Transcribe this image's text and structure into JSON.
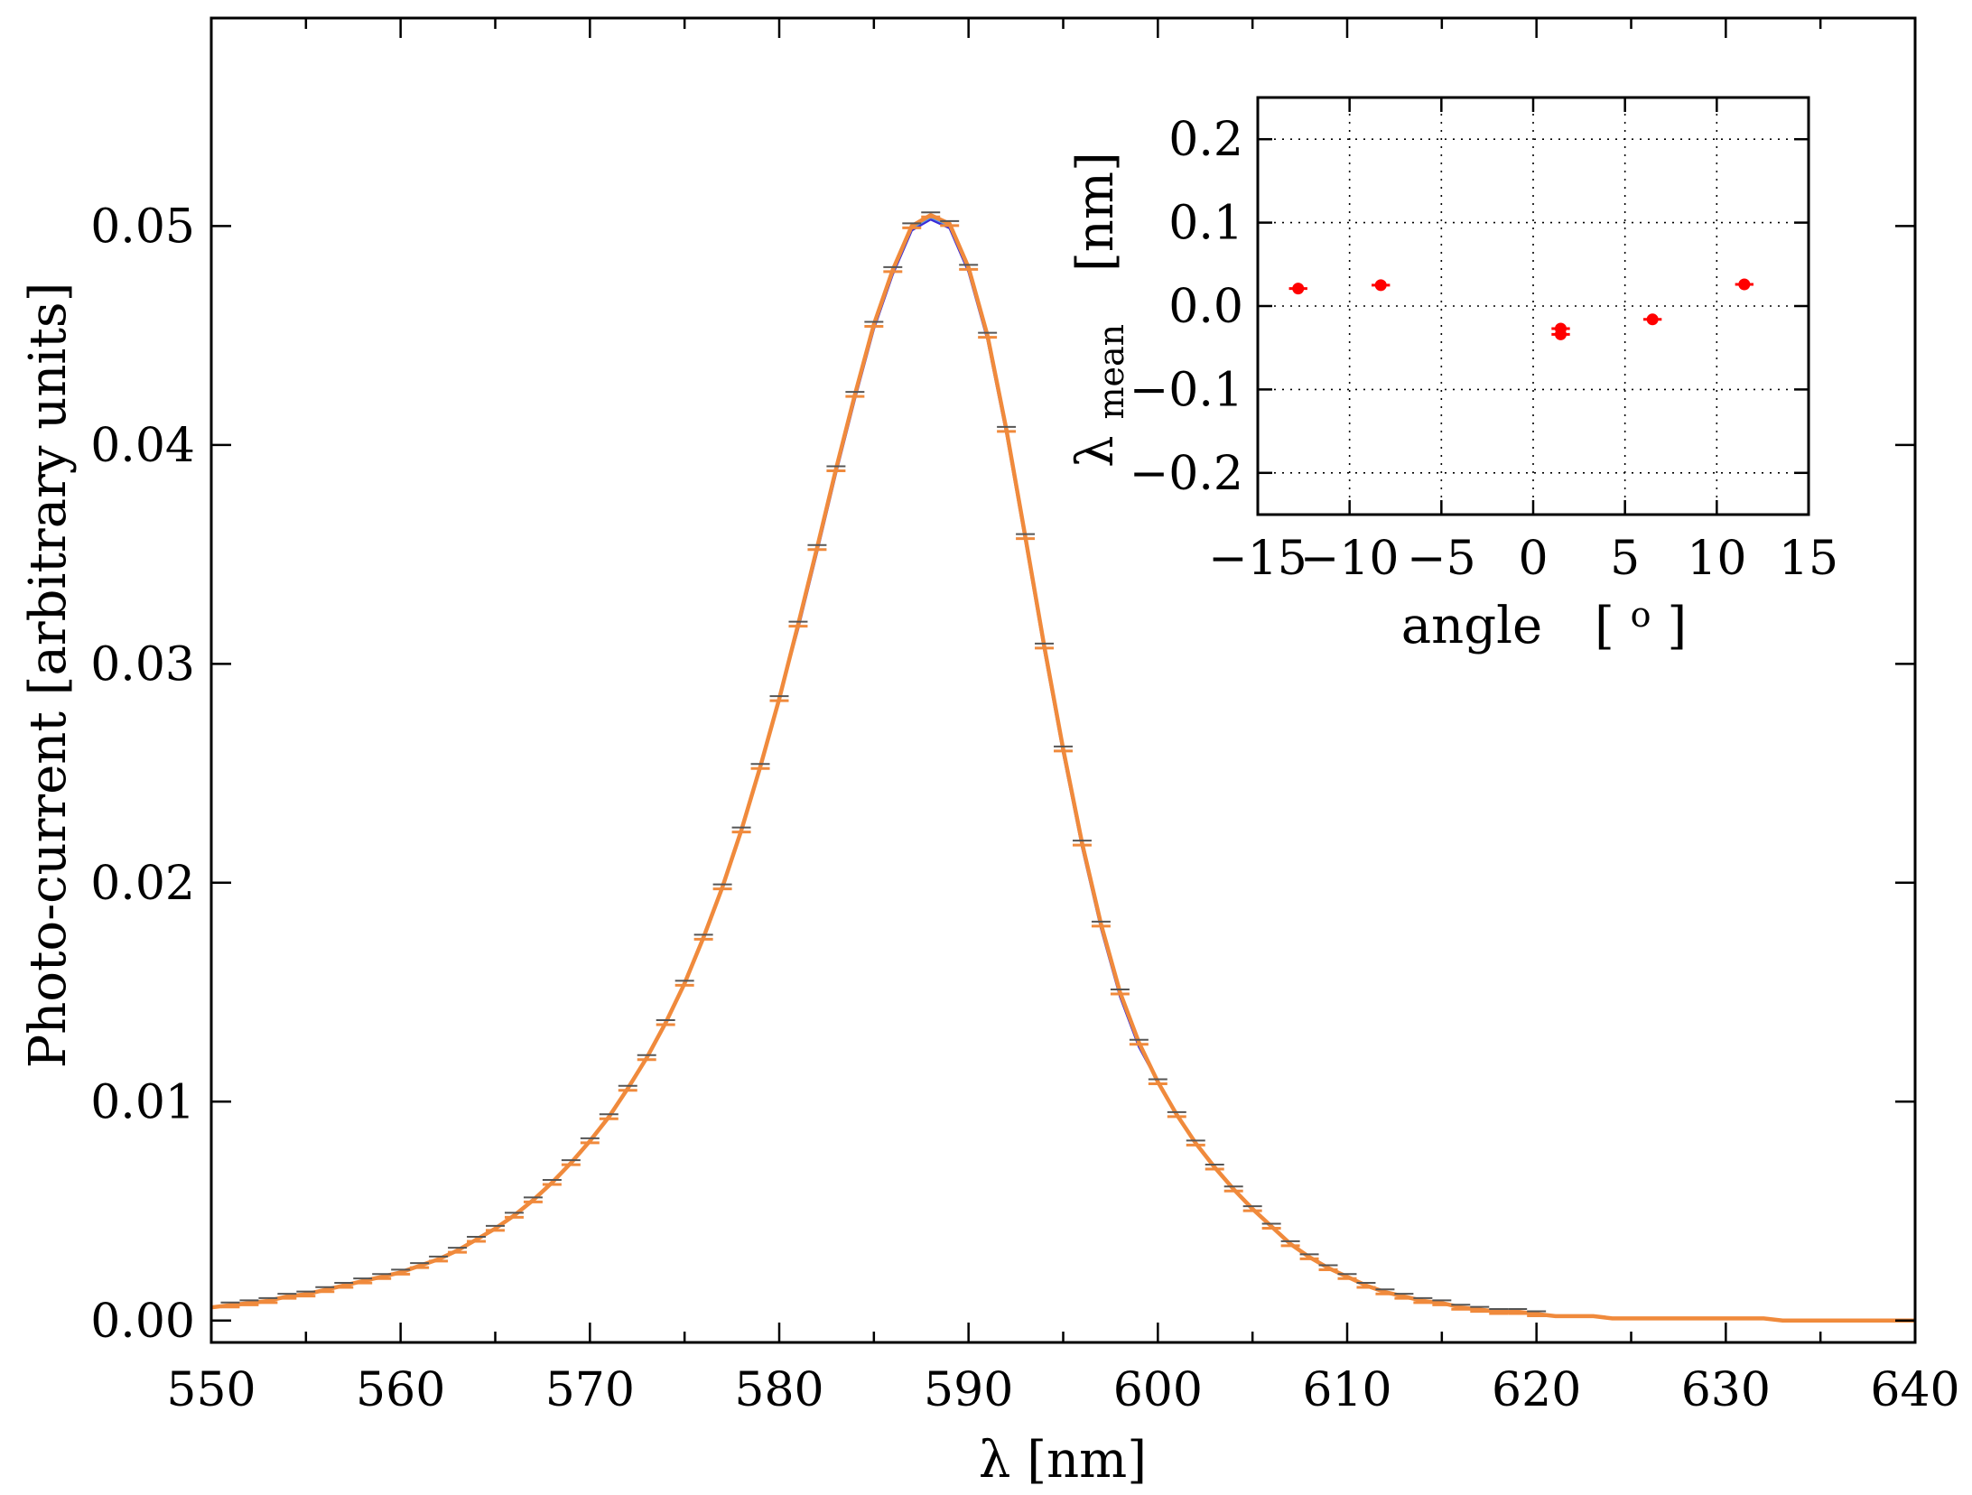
{
  "chart_data": [
    {
      "type": "line",
      "xlabel": "λ  [nm]",
      "ylabel": "Photo-current   [arbitrary units]",
      "xlim": [
        550,
        640
      ],
      "ylim": [
        -0.001,
        0.0595
      ],
      "xticks": [
        550,
        560,
        570,
        580,
        590,
        600,
        610,
        620,
        630,
        640
      ],
      "yticks": [
        0.0,
        0.01,
        0.02,
        0.03,
        0.04,
        0.05
      ],
      "xtick_labels": [
        "550",
        "560",
        "570",
        "580",
        "590",
        "600",
        "610",
        "620",
        "630",
        "640"
      ],
      "ytick_labels": [
        "0.00",
        "0.01",
        "0.02",
        "0.03",
        "0.04",
        "0.05"
      ],
      "grid": false,
      "series_colors": [
        "#3b2bd6",
        "#56a0e8",
        "#7fd6a6",
        "#f08a3c"
      ],
      "x": [
        550,
        551,
        552,
        553,
        554,
        555,
        556,
        557,
        558,
        559,
        560,
        561,
        562,
        563,
        564,
        565,
        566,
        567,
        568,
        569,
        570,
        571,
        572,
        573,
        574,
        575,
        576,
        577,
        578,
        579,
        580,
        581,
        582,
        583,
        584,
        585,
        586,
        587,
        588,
        589,
        590,
        591,
        592,
        593,
        594,
        595,
        596,
        597,
        598,
        599,
        600,
        601,
        602,
        603,
        604,
        605,
        606,
        607,
        608,
        609,
        610,
        611,
        612,
        613,
        614,
        615,
        616,
        617,
        618,
        619,
        620,
        621,
        622,
        623,
        624,
        625,
        626,
        627,
        628,
        629,
        630,
        631,
        632,
        633,
        634,
        635,
        636,
        637,
        638,
        639,
        640
      ],
      "y": [
        0.0006,
        0.0007,
        0.0008,
        0.0009,
        0.0011,
        0.0012,
        0.0014,
        0.0016,
        0.0018,
        0.002,
        0.0022,
        0.0025,
        0.0028,
        0.0032,
        0.0037,
        0.0042,
        0.0048,
        0.0055,
        0.0063,
        0.0072,
        0.0082,
        0.0093,
        0.0106,
        0.012,
        0.0136,
        0.0154,
        0.0175,
        0.0198,
        0.0224,
        0.0253,
        0.0284,
        0.0318,
        0.0353,
        0.0389,
        0.0423,
        0.0455,
        0.048,
        0.05,
        0.0505,
        0.0501,
        0.0481,
        0.045,
        0.0407,
        0.0358,
        0.0308,
        0.0261,
        0.0218,
        0.0181,
        0.015,
        0.0127,
        0.0109,
        0.0094,
        0.0081,
        0.007,
        0.006,
        0.0051,
        0.0043,
        0.0035,
        0.0029,
        0.0024,
        0.002,
        0.0016,
        0.0013,
        0.0011,
        0.0009,
        0.0008,
        0.0006,
        0.0005,
        0.0004,
        0.0004,
        0.0003,
        0.0002,
        0.0002,
        0.0002,
        0.0001,
        0.0001,
        0.0001,
        0.0001,
        0.0001,
        0.0001,
        0.0001,
        0.0001,
        0.0001,
        0.0,
        0.0,
        0.0,
        0.0,
        0.0,
        0.0,
        0.0,
        0.0
      ],
      "error_bar_x": [
        551,
        552,
        553,
        554,
        555,
        556,
        557,
        558,
        559,
        560,
        561,
        562,
        563,
        564,
        565,
        566,
        567,
        568,
        569,
        570,
        571,
        572,
        573,
        574,
        575,
        576,
        577,
        578,
        579,
        580,
        581,
        582,
        583,
        584,
        585,
        586,
        587,
        588,
        589,
        590,
        591,
        592,
        593,
        594,
        595,
        596,
        597,
        598,
        599,
        600,
        601,
        602,
        603,
        604,
        605,
        606,
        607,
        608,
        609,
        610,
        611,
        612,
        613,
        614,
        615,
        616,
        617,
        618,
        619,
        620
      ],
      "error_bar_halfwidth_nm": 0.5
    },
    {
      "type": "scatter",
      "xlabel_main": "angle",
      "xlabel_unit": "[",
      "xlabel_degree": "o",
      "xlabel_close": "]",
      "ylabel_main": "λ",
      "ylabel_sub": "mean",
      "ylabel_unit": "[nm]",
      "xlim": [
        -15,
        15
      ],
      "ylim": [
        -0.25,
        0.25
      ],
      "xticks": [
        -15,
        -10,
        -5,
        0,
        5,
        10,
        15
      ],
      "yticks": [
        -0.2,
        -0.1,
        0.0,
        0.1,
        0.2
      ],
      "xtick_labels": [
        "−15",
        "−10",
        "−5",
        "0",
        "5",
        "10",
        "15"
      ],
      "ytick_labels": [
        "−0.2",
        "−0.1",
        "0.0",
        "0.1",
        "0.2"
      ],
      "grid": true,
      "marker_color": "#ff0000",
      "x": [
        -12.8,
        -8.3,
        1.5,
        1.5,
        6.5,
        11.5
      ],
      "y": [
        0.021,
        0.025,
        -0.027,
        -0.034,
        -0.016,
        0.026
      ],
      "xerr": [
        0.5,
        0.5,
        0.5,
        0.5,
        0.5,
        0.5
      ],
      "yerr": [
        0.004,
        0.004,
        0.006,
        0.005,
        0.003,
        0.003
      ]
    }
  ]
}
